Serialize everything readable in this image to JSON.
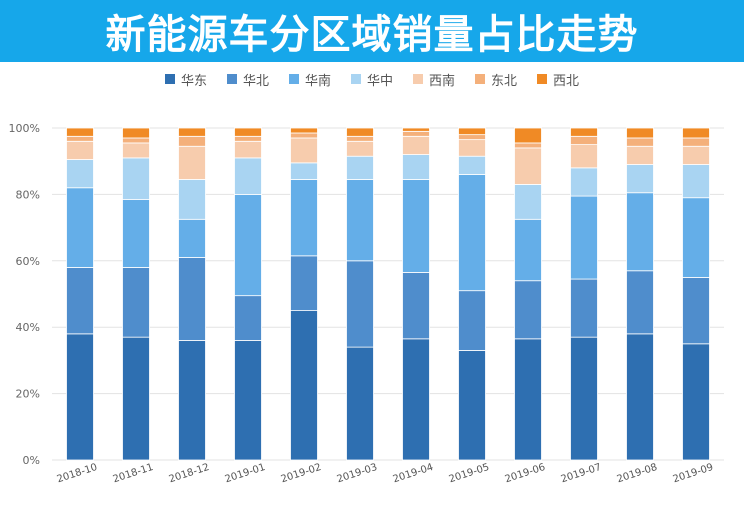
{
  "banner": {
    "title": "新能源车分区域销量占比走势"
  },
  "chart_data": {
    "type": "bar",
    "stacked": true,
    "title": "",
    "xlabel": "",
    "ylabel": "",
    "ylim": [
      0,
      100
    ],
    "yticks": [
      "0%",
      "20%",
      "40%",
      "60%",
      "80%",
      "100%"
    ],
    "grid": true,
    "legend_position": "top",
    "categories": [
      "2018-10",
      "2018-11",
      "2018-12",
      "2019-01",
      "2019-02",
      "2019-03",
      "2019-04",
      "2019-05",
      "2019-06",
      "2019-07",
      "2019-08",
      "2019-09"
    ],
    "series": [
      {
        "name": "华东",
        "color": "#2e6fb1",
        "values": [
          38,
          37,
          36,
          36,
          45,
          34,
          36.5,
          33,
          36.5,
          37,
          38,
          35
        ]
      },
      {
        "name": "华北",
        "color": "#4f8dcc",
        "values": [
          20,
          21,
          25,
          13.5,
          16.5,
          26,
          20,
          18,
          17.5,
          17.5,
          19,
          20
        ]
      },
      {
        "name": "华南",
        "color": "#64aee8",
        "values": [
          24,
          20.5,
          11.5,
          30.5,
          23,
          24.5,
          28,
          35,
          18.5,
          25,
          23.5,
          24
        ]
      },
      {
        "name": "华中",
        "color": "#a9d4f2",
        "values": [
          8.5,
          12.5,
          12,
          11,
          5,
          7,
          7.5,
          5.5,
          10.5,
          8.5,
          8.5,
          10
        ]
      },
      {
        "name": "西南",
        "color": "#f7ccad",
        "values": [
          5.5,
          4.5,
          10,
          5,
          7.5,
          4.5,
          5.5,
          5,
          11,
          7,
          5.5,
          5.5
        ]
      },
      {
        "name": "东北",
        "color": "#f4b07b",
        "values": [
          1.5,
          1.5,
          3,
          1.5,
          1.5,
          1.5,
          1.5,
          1.5,
          1.5,
          2.5,
          2.5,
          2.5
        ]
      },
      {
        "name": "西北",
        "color": "#f08a25",
        "values": [
          2.5,
          3,
          2.5,
          2.5,
          1.5,
          2.5,
          1,
          2,
          4.5,
          2.5,
          3,
          3
        ]
      }
    ]
  }
}
